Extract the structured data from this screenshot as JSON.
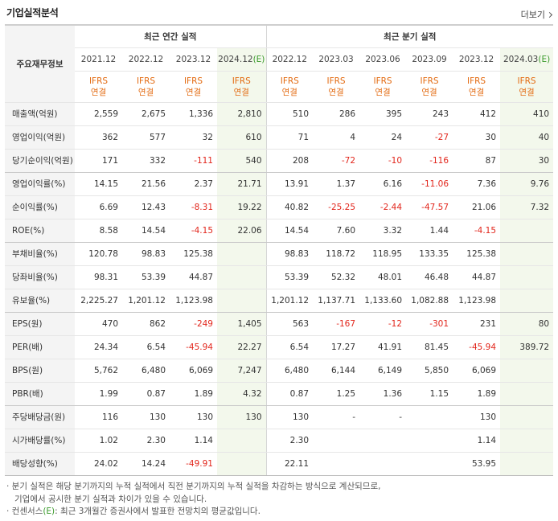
{
  "header": {
    "title": "기업실적분석",
    "more_label": "더보기"
  },
  "table": {
    "corner_label": "주요재무정보",
    "groups": {
      "annual": "최근 연간 실적",
      "quarter": "최근 분기 실적"
    },
    "periods": [
      {
        "label": "2021.12",
        "est_mark": ""
      },
      {
        "label": "2022.12",
        "est_mark": ""
      },
      {
        "label": "2023.12",
        "est_mark": ""
      },
      {
        "label": "2024.12",
        "est_mark": "(E)"
      },
      {
        "label": "2022.12",
        "est_mark": ""
      },
      {
        "label": "2023.03",
        "est_mark": ""
      },
      {
        "label": "2023.06",
        "est_mark": ""
      },
      {
        "label": "2023.09",
        "est_mark": ""
      },
      {
        "label": "2023.12",
        "est_mark": ""
      },
      {
        "label": "2024.03",
        "est_mark": "(E)"
      }
    ],
    "basis_line1": "IFRS",
    "basis_line2": "연결",
    "rows": [
      {
        "label": "매출액(억원)",
        "values": [
          "2,559",
          "2,675",
          "1,336",
          "2,810",
          "510",
          "286",
          "395",
          "243",
          "412",
          "410"
        ]
      },
      {
        "label": "영업이익(억원)",
        "values": [
          "362",
          "577",
          "32",
          "610",
          "71",
          "4",
          "24",
          "-27",
          "30",
          "40"
        ]
      },
      {
        "label": "당기순이익(억원)",
        "values": [
          "171",
          "332",
          "-111",
          "540",
          "208",
          "-72",
          "-10",
          "-116",
          "87",
          "30"
        ]
      },
      {
        "label": "영업이익률(%)",
        "values": [
          "14.15",
          "21.56",
          "2.37",
          "21.71",
          "13.91",
          "1.37",
          "6.16",
          "-11.06",
          "7.36",
          "9.76"
        ]
      },
      {
        "label": "순이익률(%)",
        "values": [
          "6.69",
          "12.43",
          "-8.31",
          "19.22",
          "40.82",
          "-25.25",
          "-2.44",
          "-47.57",
          "21.06",
          "7.32"
        ]
      },
      {
        "label": "ROE(%)",
        "values": [
          "8.58",
          "14.54",
          "-4.15",
          "22.06",
          "14.54",
          "7.60",
          "3.32",
          "1.44",
          "-4.15",
          ""
        ]
      },
      {
        "label": "부채비율(%)",
        "values": [
          "120.78",
          "98.83",
          "125.38",
          "",
          "98.83",
          "118.72",
          "118.95",
          "133.35",
          "125.38",
          ""
        ]
      },
      {
        "label": "당좌비율(%)",
        "values": [
          "98.31",
          "53.39",
          "44.87",
          "",
          "53.39",
          "52.32",
          "48.01",
          "46.48",
          "44.87",
          ""
        ]
      },
      {
        "label": "유보율(%)",
        "values": [
          "2,225.27",
          "1,201.12",
          "1,123.98",
          "",
          "1,201.12",
          "1,137.71",
          "1,133.60",
          "1,082.88",
          "1,123.98",
          ""
        ]
      },
      {
        "label": "EPS(원)",
        "values": [
          "470",
          "862",
          "-249",
          "1,405",
          "563",
          "-167",
          "-12",
          "-301",
          "231",
          "80"
        ]
      },
      {
        "label": "PER(배)",
        "values": [
          "24.34",
          "6.54",
          "-45.94",
          "22.27",
          "6.54",
          "17.27",
          "41.91",
          "81.45",
          "-45.94",
          "389.72"
        ]
      },
      {
        "label": "BPS(원)",
        "values": [
          "5,762",
          "6,480",
          "6,069",
          "7,247",
          "6,480",
          "6,144",
          "6,149",
          "5,850",
          "6,069",
          ""
        ]
      },
      {
        "label": "PBR(배)",
        "values": [
          "1.99",
          "0.87",
          "1.89",
          "4.32",
          "0.87",
          "1.25",
          "1.36",
          "1.15",
          "1.89",
          ""
        ]
      },
      {
        "label": "주당배당금(원)",
        "values": [
          "116",
          "130",
          "130",
          "130",
          "130",
          "-",
          "-",
          "",
          "130",
          ""
        ]
      },
      {
        "label": "시가배당률(%)",
        "values": [
          "1.02",
          "2.30",
          "1.14",
          "",
          "2.30",
          "",
          "",
          "",
          "1.14",
          ""
        ]
      },
      {
        "label": "배당성향(%)",
        "values": [
          "24.02",
          "14.24",
          "-49.91",
          "",
          "22.11",
          "",
          "",
          "",
          "53.95",
          ""
        ]
      }
    ]
  },
  "notes": {
    "line1": "· 분기 실적은 해당 분기까지의 누적 실적에서 직전 분기까지의 누적 실적을 차감하는 방식으로 계산되므로,",
    "line2": "기업에서 공시한 분기 실적과 차이가 있을 수 있습니다.",
    "line3_prefix": "· 컨센서스",
    "line3_mark": "(E)",
    "line3_suffix": ": 최근 3개월간 증권사에서 발표한 전망치의 평균값입니다."
  },
  "colors": {
    "negative": "#e2261c",
    "ifrs": "#e36b12",
    "estimate_bg": "#f3f8ec",
    "estimate_mark": "#3a9a2b",
    "row_header_bg": "#f4f4f4"
  }
}
